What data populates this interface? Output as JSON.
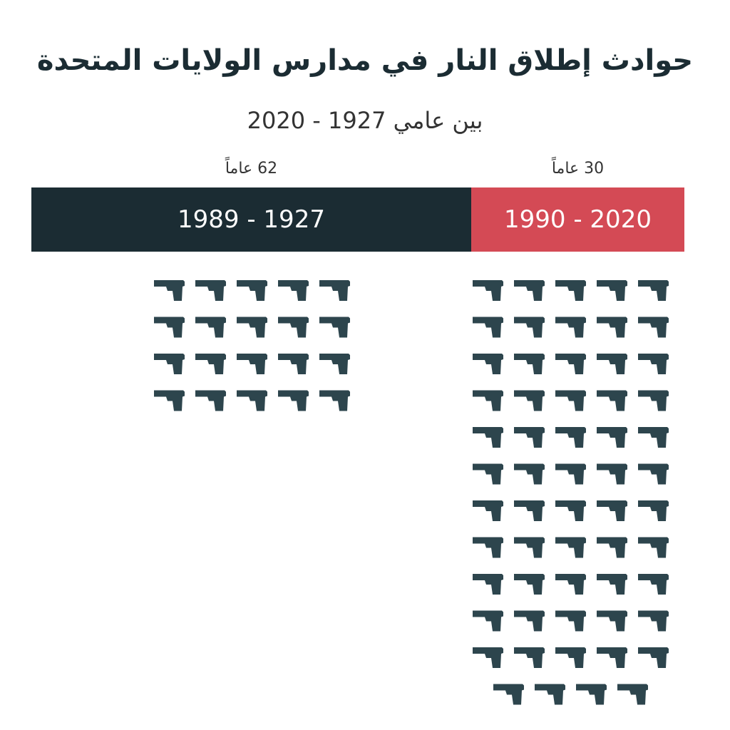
{
  "colors": {
    "dark": "#1b2c33",
    "red": "#d44a55",
    "icon": "#2d454d"
  },
  "title": "حوادث إطلاق النار في مدارس الولايات المتحدة",
  "subtitle": "بين عامي 1927 - 2020",
  "chart_data": {
    "type": "pictogram",
    "icon": "pistol-icon",
    "unit": "incident",
    "categories": [
      {
        "period": "1989 - 1927",
        "duration": "62 عاماً",
        "count": 20,
        "color": "#1b2c33"
      },
      {
        "period": "1990 - 2020",
        "duration": "30 عاماً",
        "count": 59,
        "color": "#d44a55"
      }
    ]
  }
}
